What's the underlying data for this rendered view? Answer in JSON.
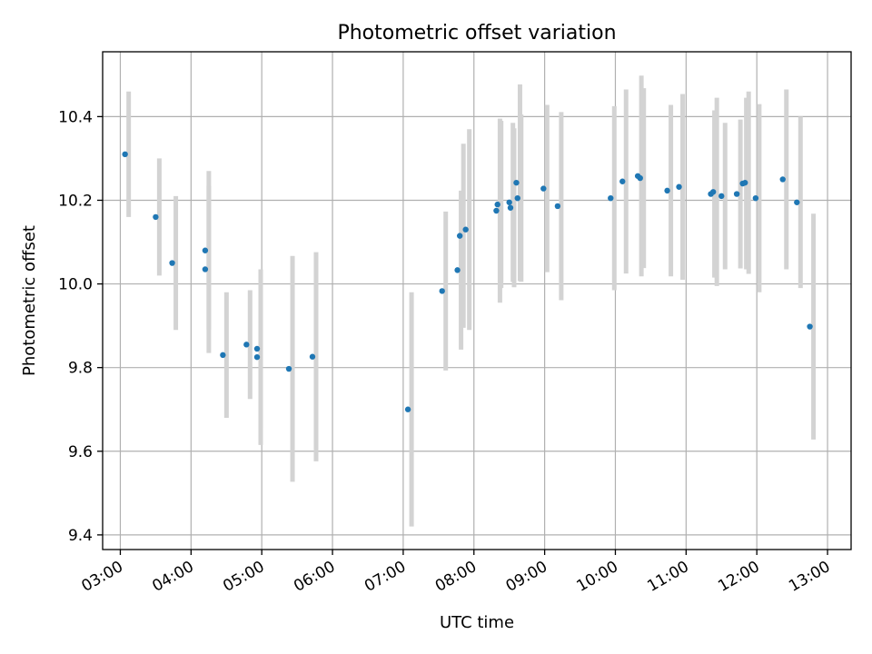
{
  "chart_data": {
    "type": "scatter",
    "title": "Photometric offset variation",
    "xlabel": "UTC time",
    "ylabel": "Photometric offset",
    "xlim": [
      "02:45",
      "13:20"
    ],
    "ylim": [
      9.365,
      10.555
    ],
    "grid": true,
    "x_ticks": [
      "03:00",
      "04:00",
      "05:00",
      "06:00",
      "07:00",
      "08:00",
      "09:00",
      "10:00",
      "11:00",
      "12:00",
      "13:00"
    ],
    "y_ticks": [
      9.4,
      9.6,
      9.8,
      10.0,
      10.2,
      10.4
    ],
    "point_color": "#1f77b4",
    "error_color": "#d3d3d3",
    "series": [
      {
        "points": [
          {
            "x": "03:04",
            "y": 10.31,
            "err": 0.15
          },
          {
            "x": "03:30",
            "y": 10.16,
            "err": 0.14
          },
          {
            "x": "03:44",
            "y": 10.05,
            "err": 0.16
          },
          {
            "x": "04:12",
            "y": 10.08,
            "err": 0.19
          },
          {
            "x": "04:12",
            "y": 10.035,
            "err": 0.2
          },
          {
            "x": "04:27",
            "y": 9.83,
            "err": 0.15
          },
          {
            "x": "04:47",
            "y": 9.855,
            "err": 0.13
          },
          {
            "x": "04:56",
            "y": 9.845,
            "err": 0.19
          },
          {
            "x": "04:56",
            "y": 9.825,
            "err": 0.21
          },
          {
            "x": "05:23",
            "y": 9.797,
            "err": 0.27
          },
          {
            "x": "05:43",
            "y": 9.826,
            "err": 0.25
          },
          {
            "x": "07:04",
            "y": 9.7,
            "err": 0.28
          },
          {
            "x": "07:33",
            "y": 9.983,
            "err": 0.19
          },
          {
            "x": "07:46",
            "y": 10.033,
            "err": 0.19
          },
          {
            "x": "07:48",
            "y": 10.115,
            "err": 0.22
          },
          {
            "x": "07:53",
            "y": 10.13,
            "err": 0.24
          },
          {
            "x": "08:19",
            "y": 10.175,
            "err": 0.22
          },
          {
            "x": "08:20",
            "y": 10.19,
            "err": 0.2
          },
          {
            "x": "08:30",
            "y": 10.195,
            "err": 0.19
          },
          {
            "x": "08:31",
            "y": 10.182,
            "err": 0.19
          },
          {
            "x": "08:36",
            "y": 10.242,
            "err": 0.235
          },
          {
            "x": "08:37",
            "y": 10.205,
            "err": 0.2
          },
          {
            "x": "08:59",
            "y": 10.228,
            "err": 0.2
          },
          {
            "x": "09:11",
            "y": 10.186,
            "err": 0.225
          },
          {
            "x": "09:56",
            "y": 10.205,
            "err": 0.22
          },
          {
            "x": "10:06",
            "y": 10.245,
            "err": 0.22
          },
          {
            "x": "10:19",
            "y": 10.258,
            "err": 0.24
          },
          {
            "x": "10:21",
            "y": 10.253,
            "err": 0.215
          },
          {
            "x": "10:44",
            "y": 10.223,
            "err": 0.205
          },
          {
            "x": "10:54",
            "y": 10.232,
            "err": 0.222
          },
          {
            "x": "11:21",
            "y": 10.215,
            "err": 0.2
          },
          {
            "x": "11:23",
            "y": 10.22,
            "err": 0.225
          },
          {
            "x": "11:30",
            "y": 10.21,
            "err": 0.175
          },
          {
            "x": "11:43",
            "y": 10.215,
            "err": 0.178
          },
          {
            "x": "11:48",
            "y": 10.24,
            "err": 0.205
          },
          {
            "x": "11:50",
            "y": 10.242,
            "err": 0.218
          },
          {
            "x": "11:59",
            "y": 10.205,
            "err": 0.225
          },
          {
            "x": "12:22",
            "y": 10.25,
            "err": 0.215
          },
          {
            "x": "12:34",
            "y": 10.195,
            "err": 0.205
          },
          {
            "x": "12:45",
            "y": 9.898,
            "err": 0.27
          }
        ]
      }
    ]
  }
}
